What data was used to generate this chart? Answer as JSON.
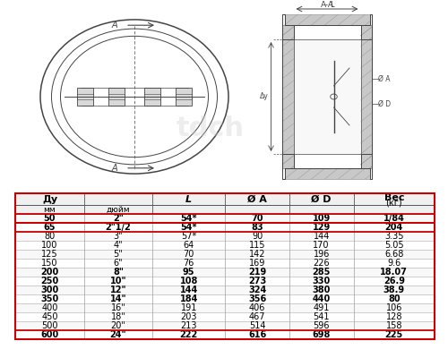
{
  "table_data": [
    [
      "50",
      "2\"",
      "54*",
      "70",
      "109",
      "1/84"
    ],
    [
      "65",
      "2\"1/2",
      "54*",
      "83",
      "129",
      "204"
    ],
    [
      "80",
      "3\"",
      "57*",
      "90",
      "144",
      "3.35"
    ],
    [
      "100",
      "4\"",
      "64",
      "115",
      "170",
      "5.05"
    ],
    [
      "125",
      "5\"",
      "70",
      "142",
      "196",
      "6.68"
    ],
    [
      "150",
      "6\"",
      "76",
      "169",
      "226",
      "9.6"
    ],
    [
      "200",
      "8\"",
      "95",
      "219",
      "285",
      "18.07"
    ],
    [
      "250",
      "10\"",
      "108",
      "273",
      "330",
      "26.9"
    ],
    [
      "300",
      "12\"",
      "144",
      "324",
      "380",
      "38.9"
    ],
    [
      "350",
      "14\"",
      "184",
      "356",
      "440",
      "80"
    ],
    [
      "400",
      "16\"",
      "191",
      "406",
      "491",
      "106"
    ],
    [
      "450",
      "18\"",
      "203",
      "467",
      "541",
      "128"
    ],
    [
      "500",
      "20\"",
      "213",
      "514",
      "596",
      "158"
    ],
    [
      "600",
      "24\"",
      "222",
      "616",
      "698",
      "225"
    ]
  ],
  "bold_rows": [
    0,
    1,
    6,
    7,
    8,
    9,
    13
  ],
  "red_border_rows": [
    0,
    1,
    13
  ],
  "red_color": "#cc0000",
  "line_color": "#444444",
  "hatch_color": "#888888",
  "bg_white": "#ffffff",
  "bg_gray": "#f0f0f0"
}
